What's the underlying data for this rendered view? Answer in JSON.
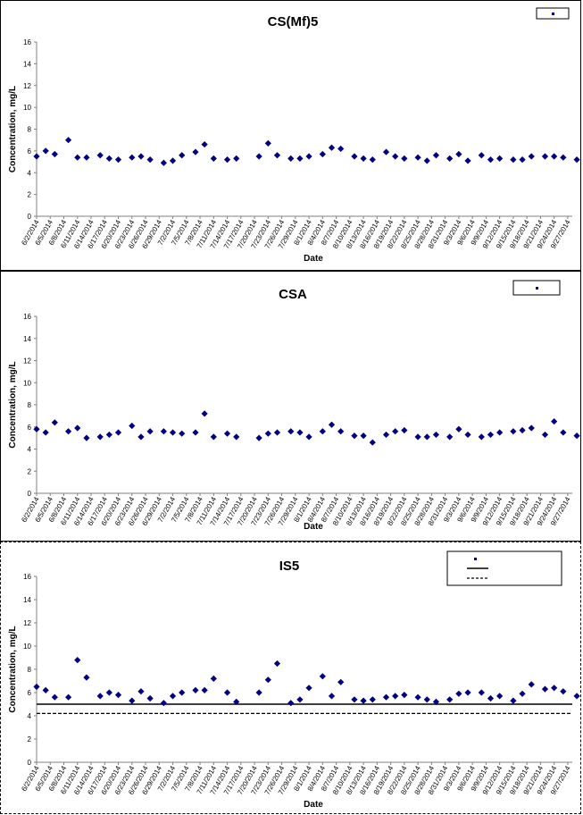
{
  "colors": {
    "marker": "#000080",
    "axis": "#808080",
    "grid": "#000000"
  },
  "dates": [
    "6/2/2014",
    "6/5/2014",
    "6/8/2014",
    "6/11/2014",
    "6/14/2014",
    "6/17/2014",
    "6/20/2014",
    "6/23/2014",
    "6/26/2014",
    "6/29/2014",
    "7/2/2014",
    "7/5/2014",
    "7/8/2014",
    "7/11/2014",
    "7/14/2014",
    "7/17/2014",
    "7/20/2014",
    "7/23/2014",
    "7/26/2014",
    "7/29/2014",
    "8/1/2014",
    "8/4/2014",
    "8/7/2014",
    "8/10/2014",
    "8/13/2014",
    "8/16/2014",
    "8/19/2014",
    "8/22/2014",
    "8/25/2014",
    "8/28/2014",
    "8/31/2014",
    "9/3/2014",
    "9/6/2014",
    "9/9/2014",
    "9/12/2014",
    "9/15/2014",
    "9/18/2014",
    "9/21/2014",
    "9/24/2014",
    "9/27/2014"
  ],
  "chart_data": [
    {
      "type": "scatter",
      "title": "CS(Mf)5",
      "xlabel": "Date",
      "ylabel": "Concentration, mg/L",
      "ylim": [
        0,
        16
      ],
      "yticks": [
        "0",
        "2",
        "4",
        "6",
        "8",
        "10",
        "12",
        "14",
        "16"
      ],
      "grid": false,
      "legend_position": "top-right",
      "x_range": [
        "6/2/2014",
        "9/28/2014"
      ],
      "series": [
        {
          "values": [
            [
              "6/2/2014",
              5.5
            ],
            [
              "6/4/2014",
              6.0
            ],
            [
              "6/6/2014",
              5.7
            ],
            [
              "6/9/2014",
              7.0
            ],
            [
              "6/11/2014",
              5.4
            ],
            [
              "6/13/2014",
              5.4
            ],
            [
              "6/16/2014",
              5.6
            ],
            [
              "6/18/2014",
              5.3
            ],
            [
              "6/20/2014",
              5.2
            ],
            [
              "6/23/2014",
              5.4
            ],
            [
              "6/25/2014",
              5.5
            ],
            [
              "6/27/2014",
              5.2
            ],
            [
              "6/30/2014",
              4.9
            ],
            [
              "7/2/2014",
              5.1
            ],
            [
              "7/4/2014",
              5.6
            ],
            [
              "7/7/2014",
              5.9
            ],
            [
              "7/9/2014",
              6.6
            ],
            [
              "7/11/2014",
              5.3
            ],
            [
              "7/14/2014",
              5.2
            ],
            [
              "7/16/2014",
              5.3
            ],
            [
              "7/21/2014",
              5.5
            ],
            [
              "7/23/2014",
              6.7
            ],
            [
              "7/25/2014",
              5.6
            ],
            [
              "7/28/2014",
              5.3
            ],
            [
              "7/30/2014",
              5.3
            ],
            [
              "8/1/2014",
              5.5
            ],
            [
              "8/4/2014",
              5.7
            ],
            [
              "8/6/2014",
              6.3
            ],
            [
              "8/8/2014",
              6.2
            ],
            [
              "8/11/2014",
              5.5
            ],
            [
              "8/13/2014",
              5.3
            ],
            [
              "8/15/2014",
              5.2
            ],
            [
              "8/18/2014",
              5.9
            ],
            [
              "8/20/2014",
              5.5
            ],
            [
              "8/22/2014",
              5.3
            ],
            [
              "8/25/2014",
              5.4
            ],
            [
              "8/27/2014",
              5.1
            ],
            [
              "8/29/2014",
              5.6
            ],
            [
              "9/1/2014",
              5.3
            ],
            [
              "9/3/2014",
              5.7
            ],
            [
              "9/5/2014",
              5.1
            ],
            [
              "9/8/2014",
              5.6
            ],
            [
              "9/10/2014",
              5.2
            ],
            [
              "9/12/2014",
              5.3
            ],
            [
              "9/15/2014",
              5.2
            ],
            [
              "9/17/2014",
              5.2
            ],
            [
              "9/19/2014",
              5.5
            ],
            [
              "9/22/2014",
              5.5
            ],
            [
              "9/24/2014",
              5.5
            ],
            [
              "9/26/2014",
              5.4
            ],
            [
              "9/29/2014",
              5.2
            ]
          ]
        }
      ]
    },
    {
      "type": "scatter",
      "title": "CSA",
      "xlabel": "Date",
      "ylabel": "Concentration, mg/L",
      "ylim": [
        0,
        16
      ],
      "yticks": [
        "0",
        "2",
        "4",
        "6",
        "8",
        "10",
        "12",
        "14",
        "16"
      ],
      "grid": false,
      "legend_position": "top-right",
      "x_range": [
        "6/2/2014",
        "9/28/2014"
      ],
      "series": [
        {
          "values": [
            [
              "6/2/2014",
              5.8
            ],
            [
              "6/4/2014",
              5.5
            ],
            [
              "6/6/2014",
              6.4
            ],
            [
              "6/9/2014",
              5.6
            ],
            [
              "6/11/2014",
              5.9
            ],
            [
              "6/13/2014",
              5.0
            ],
            [
              "6/16/2014",
              5.1
            ],
            [
              "6/18/2014",
              5.3
            ],
            [
              "6/20/2014",
              5.5
            ],
            [
              "6/23/2014",
              6.1
            ],
            [
              "6/25/2014",
              5.1
            ],
            [
              "6/27/2014",
              5.6
            ],
            [
              "6/30/2014",
              5.6
            ],
            [
              "7/2/2014",
              5.5
            ],
            [
              "7/4/2014",
              5.4
            ],
            [
              "7/7/2014",
              5.5
            ],
            [
              "7/9/2014",
              7.2
            ],
            [
              "7/11/2014",
              5.1
            ],
            [
              "7/14/2014",
              5.4
            ],
            [
              "7/16/2014",
              5.1
            ],
            [
              "7/21/2014",
              5.0
            ],
            [
              "7/23/2014",
              5.4
            ],
            [
              "7/25/2014",
              5.5
            ],
            [
              "7/28/2014",
              5.6
            ],
            [
              "7/30/2014",
              5.5
            ],
            [
              "8/1/2014",
              5.1
            ],
            [
              "8/4/2014",
              5.6
            ],
            [
              "8/6/2014",
              6.2
            ],
            [
              "8/8/2014",
              5.6
            ],
            [
              "8/11/2014",
              5.2
            ],
            [
              "8/13/2014",
              5.2
            ],
            [
              "8/15/2014",
              4.6
            ],
            [
              "8/18/2014",
              5.3
            ],
            [
              "8/20/2014",
              5.6
            ],
            [
              "8/22/2014",
              5.7
            ],
            [
              "8/25/2014",
              5.1
            ],
            [
              "8/27/2014",
              5.1
            ],
            [
              "8/29/2014",
              5.3
            ],
            [
              "9/1/2014",
              5.1
            ],
            [
              "9/3/2014",
              5.8
            ],
            [
              "9/5/2014",
              5.3
            ],
            [
              "9/8/2014",
              5.1
            ],
            [
              "9/10/2014",
              5.3
            ],
            [
              "9/12/2014",
              5.5
            ],
            [
              "9/15/2014",
              5.6
            ],
            [
              "9/17/2014",
              5.7
            ],
            [
              "9/19/2014",
              5.9
            ],
            [
              "9/22/2014",
              5.3
            ],
            [
              "9/24/2014",
              6.5
            ],
            [
              "9/26/2014",
              5.5
            ],
            [
              "9/29/2014",
              5.2
            ]
          ]
        }
      ]
    },
    {
      "type": "scatter",
      "title": "IS5",
      "xlabel": "Date",
      "ylabel": "Concentration, mg/L",
      "ylim": [
        0,
        16
      ],
      "yticks": [
        "0",
        "2",
        "4",
        "6",
        "8",
        "10",
        "12",
        "14",
        "16"
      ],
      "grid": false,
      "legend_position": "top-right",
      "x_range": [
        "6/2/2014",
        "9/28/2014"
      ],
      "reference_lines": [
        {
          "style": "solid",
          "y": 5.0
        },
        {
          "style": "dashed",
          "y": 4.2
        }
      ],
      "series": [
        {
          "values": [
            [
              "6/2/2014",
              6.5
            ],
            [
              "6/4/2014",
              6.2
            ],
            [
              "6/6/2014",
              5.6
            ],
            [
              "6/9/2014",
              5.6
            ],
            [
              "6/11/2014",
              8.8
            ],
            [
              "6/13/2014",
              7.3
            ],
            [
              "6/16/2014",
              5.7
            ],
            [
              "6/18/2014",
              6.0
            ],
            [
              "6/20/2014",
              5.8
            ],
            [
              "6/23/2014",
              5.3
            ],
            [
              "6/25/2014",
              6.1
            ],
            [
              "6/27/2014",
              5.5
            ],
            [
              "6/30/2014",
              5.1
            ],
            [
              "7/2/2014",
              5.7
            ],
            [
              "7/4/2014",
              6.0
            ],
            [
              "7/7/2014",
              6.2
            ],
            [
              "7/9/2014",
              6.2
            ],
            [
              "7/11/2014",
              7.2
            ],
            [
              "7/14/2014",
              6.0
            ],
            [
              "7/16/2014",
              5.2
            ],
            [
              "7/21/2014",
              6.0
            ],
            [
              "7/23/2014",
              7.1
            ],
            [
              "7/25/2014",
              8.5
            ],
            [
              "7/28/2014",
              5.1
            ],
            [
              "7/30/2014",
              5.4
            ],
            [
              "8/1/2014",
              6.4
            ],
            [
              "8/4/2014",
              7.4
            ],
            [
              "8/6/2014",
              5.7
            ],
            [
              "8/8/2014",
              6.9
            ],
            [
              "8/11/2014",
              5.4
            ],
            [
              "8/13/2014",
              5.3
            ],
            [
              "8/15/2014",
              5.4
            ],
            [
              "8/18/2014",
              5.6
            ],
            [
              "8/20/2014",
              5.7
            ],
            [
              "8/22/2014",
              5.8
            ],
            [
              "8/25/2014",
              5.6
            ],
            [
              "8/27/2014",
              5.4
            ],
            [
              "8/29/2014",
              5.2
            ],
            [
              "9/1/2014",
              5.4
            ],
            [
              "9/3/2014",
              5.9
            ],
            [
              "9/5/2014",
              6.0
            ],
            [
              "9/8/2014",
              6.0
            ],
            [
              "9/10/2014",
              5.5
            ],
            [
              "9/12/2014",
              5.7
            ],
            [
              "9/15/2014",
              5.3
            ],
            [
              "9/17/2014",
              5.9
            ],
            [
              "9/19/2014",
              6.7
            ],
            [
              "9/22/2014",
              6.3
            ],
            [
              "9/24/2014",
              6.4
            ],
            [
              "9/26/2014",
              6.1
            ],
            [
              "9/29/2014",
              5.7
            ]
          ]
        }
      ]
    }
  ]
}
